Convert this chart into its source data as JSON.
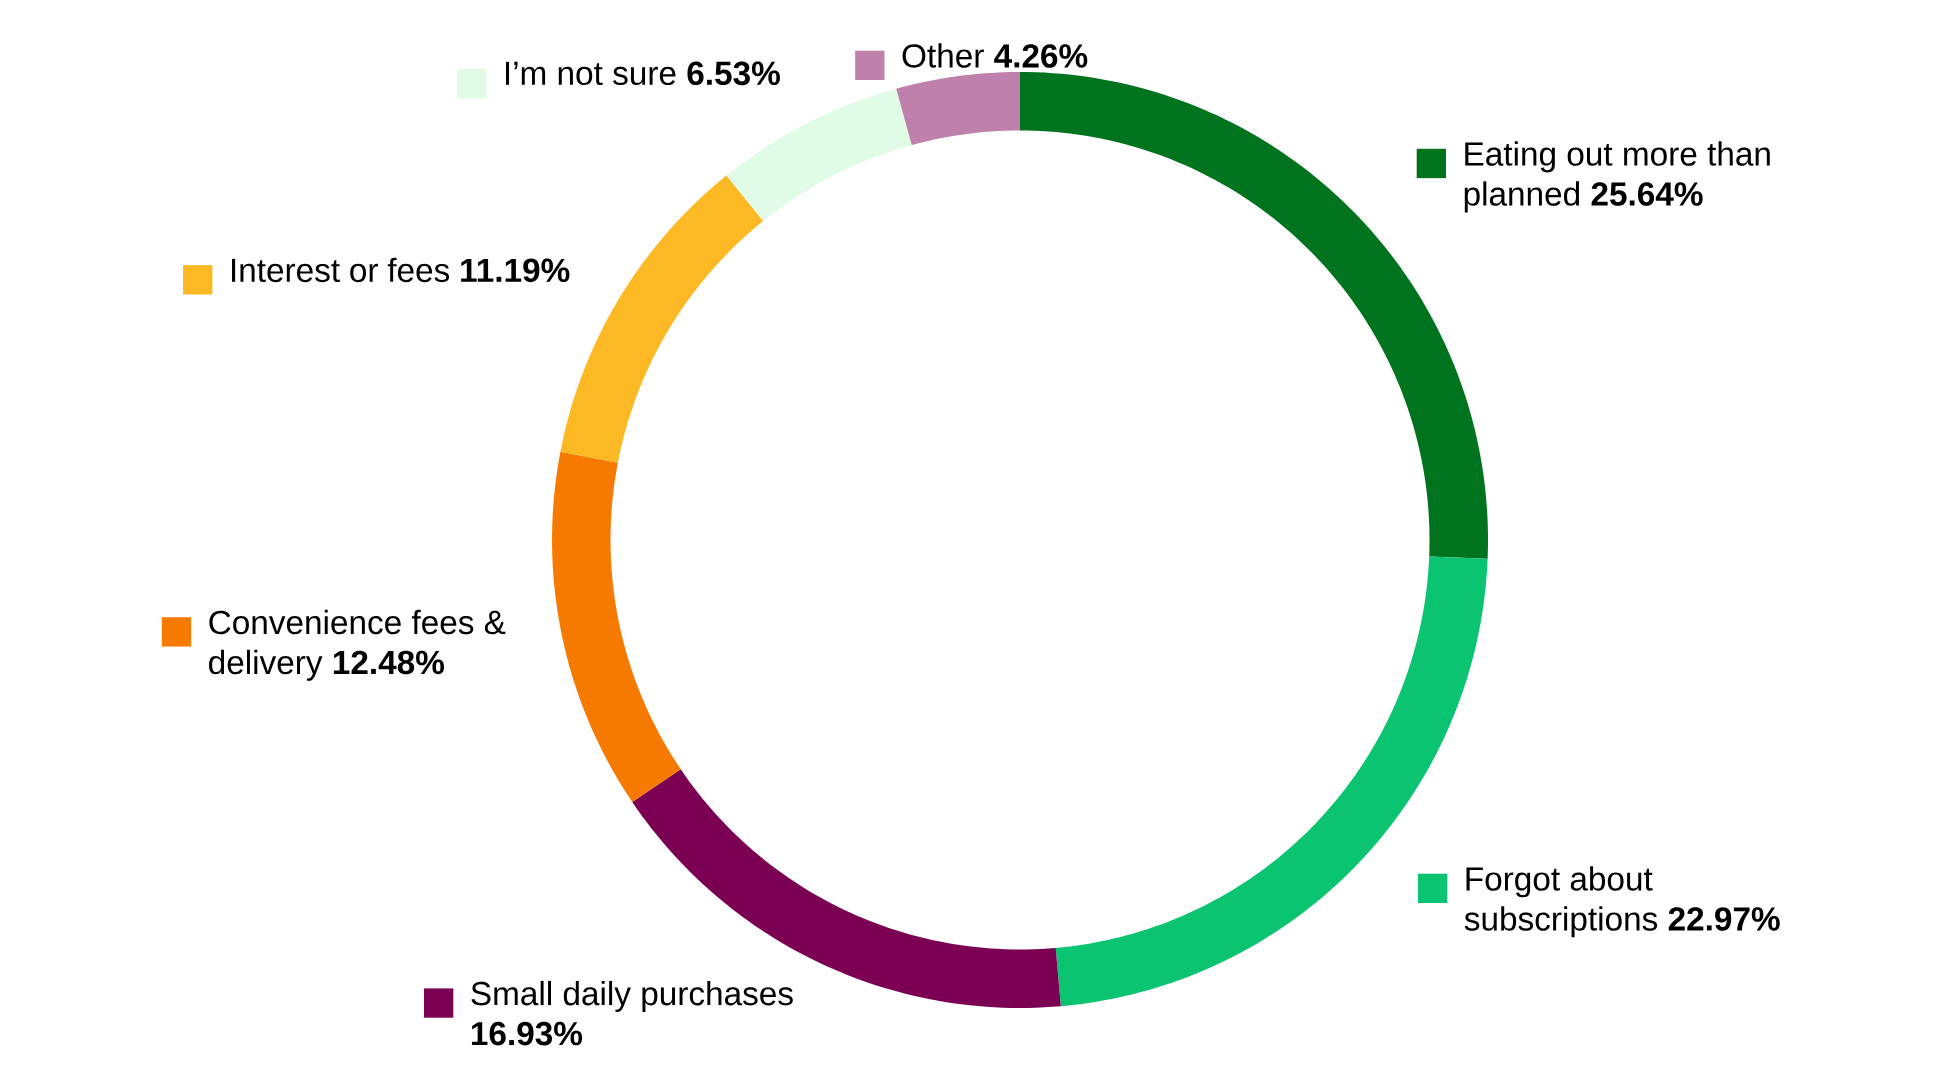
{
  "chart_data": {
    "type": "donut",
    "categories": [
      "Eating out more than planned",
      "Forgot about subscriptions",
      "Small daily purchases",
      "Convenience fees & delivery",
      "Interest or fees",
      "I’m not sure",
      "Other"
    ],
    "values": [
      25.64,
      22.97,
      16.93,
      12.48,
      11.19,
      6.53,
      4.26
    ],
    "value_labels": [
      "25.64%",
      "22.97%",
      "16.93%",
      "12.48%",
      "11.19%",
      "6.53%",
      "4.26%"
    ],
    "legend": "top left",
    "colors": [
      "#00731f",
      "#0ac472",
      "#7b0053",
      "#f77a00",
      "#fdb924",
      "#e0fbe6",
      "#c080ac"
    ]
  }
}
